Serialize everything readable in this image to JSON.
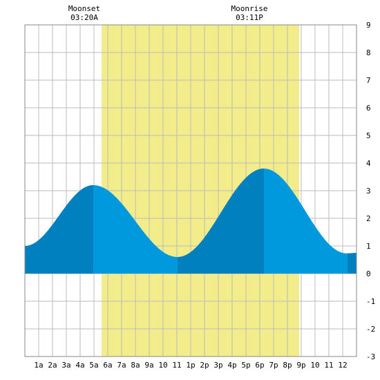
{
  "chart_data": {
    "type": "area",
    "title": "",
    "xlabel": "",
    "ylabel": "",
    "xlim": [
      0,
      24
    ],
    "ylim": [
      -3,
      9
    ],
    "y_ticks": [
      -3,
      -2,
      -1,
      0,
      1,
      2,
      3,
      4,
      5,
      6,
      7,
      8,
      9
    ],
    "y_tick_labels": [
      "-3",
      "-2",
      "-1",
      "0",
      "1",
      "2",
      "3",
      "4",
      "5",
      "6",
      "7",
      "8",
      "9"
    ],
    "x_ticks": [
      1,
      2,
      3,
      4,
      5,
      6,
      7,
      8,
      9,
      10,
      11,
      12,
      13,
      14,
      15,
      16,
      17,
      18,
      19,
      20,
      21,
      22,
      23
    ],
    "x_tick_labels": [
      "1a",
      "2a",
      "3a",
      "4a",
      "5a",
      "6a",
      "7a",
      "8a",
      "9a",
      "10",
      "11",
      "1p",
      "2p",
      "3p",
      "4p",
      "5p",
      "6p",
      "7p",
      "8p",
      "9p",
      "10",
      "11",
      "12"
    ],
    "grid": true,
    "daylight": {
      "start": 5.55,
      "end": 19.85,
      "color": "#f2ec8a"
    },
    "moon_events": [
      {
        "label": "Moonset",
        "time": "03:20A",
        "x": 3.33
      },
      {
        "label": "Moonrise",
        "time": "03:11P",
        "x": 15.18
      }
    ],
    "tide_curve": {
      "extrema": [
        {
          "x": 0,
          "y": 1.0
        },
        {
          "x": 4.95,
          "y": 3.2
        },
        {
          "x": 11.05,
          "y": 0.6
        },
        {
          "x": 17.3,
          "y": 3.8
        },
        {
          "x": 23.3,
          "y": 0.73
        },
        {
          "x": 24,
          "y": 0.75
        }
      ],
      "dark_bands": [
        [
          0,
          4.95
        ],
        [
          11.05,
          17.3
        ],
        [
          23.35,
          24
        ]
      ],
      "dark_color": "#0080bf",
      "light_color": "#0099dd"
    }
  },
  "header": {
    "moonset_label": "Moonset",
    "moonset_time": "03:20A",
    "moonrise_label": "Moonrise",
    "moonrise_time": "03:11P"
  }
}
